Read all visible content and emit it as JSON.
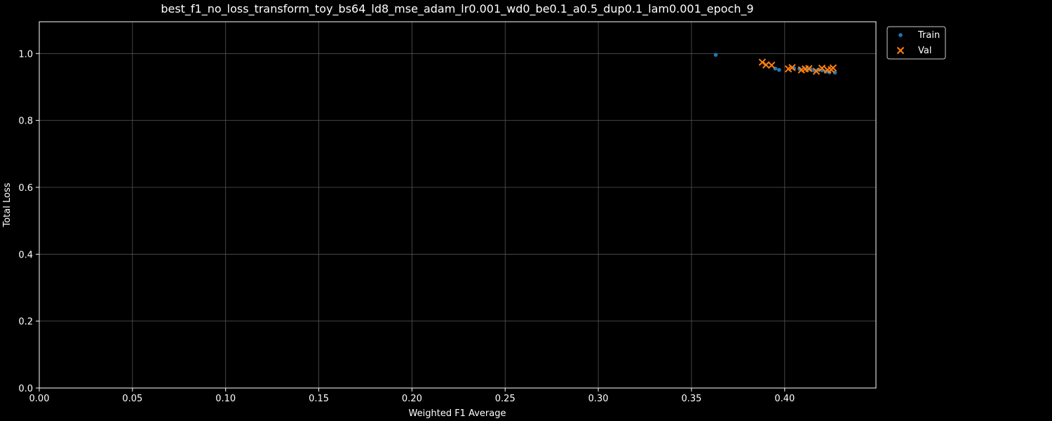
{
  "chart_data": {
    "type": "scatter",
    "title": "best_f1_no_loss_transform_toy_bs64_ld8_mse_adam_lr0.001_wd0_be0.1_a0.5_dup0.1_lam0.001_epoch_9",
    "xlabel": "Weighted F1 Average",
    "ylabel": "Total Loss",
    "xlim": [
      0,
      0.449
    ],
    "ylim": [
      0,
      1.095
    ],
    "xticks": [
      0.0,
      0.05,
      0.1,
      0.15,
      0.2,
      0.25,
      0.3,
      0.35,
      0.4
    ],
    "xtick_labels": [
      "0.00",
      "0.05",
      "0.10",
      "0.15",
      "0.20",
      "0.25",
      "0.30",
      "0.35",
      "0.40"
    ],
    "yticks": [
      0.0,
      0.2,
      0.4,
      0.6,
      0.8,
      1.0
    ],
    "ytick_labels": [
      "0.0",
      "0.2",
      "0.4",
      "0.6",
      "0.8",
      "1.0"
    ],
    "grid": true,
    "legend_position": "outside-top-right",
    "series": [
      {
        "name": "Train",
        "marker": "dot",
        "color": "#1f77b4",
        "points": [
          [
            0.363,
            0.996
          ],
          [
            0.395,
            0.955
          ],
          [
            0.397,
            0.951
          ],
          [
            0.405,
            0.956
          ],
          [
            0.408,
            0.954
          ],
          [
            0.412,
            0.951
          ],
          [
            0.414,
            0.953
          ],
          [
            0.416,
            0.949
          ],
          [
            0.418,
            0.952
          ],
          [
            0.42,
            0.95
          ],
          [
            0.422,
            0.946
          ],
          [
            0.424,
            0.944
          ],
          [
            0.427,
            0.943
          ]
        ]
      },
      {
        "name": "Val",
        "marker": "x",
        "color": "#ff7f0e",
        "points": [
          [
            0.388,
            0.974
          ],
          [
            0.39,
            0.966
          ],
          [
            0.393,
            0.965
          ],
          [
            0.402,
            0.954
          ],
          [
            0.404,
            0.958
          ],
          [
            0.409,
            0.951
          ],
          [
            0.411,
            0.954
          ],
          [
            0.413,
            0.955
          ],
          [
            0.417,
            0.947
          ],
          [
            0.42,
            0.956
          ],
          [
            0.423,
            0.951
          ],
          [
            0.425,
            0.952
          ],
          [
            0.426,
            0.957
          ]
        ]
      }
    ]
  },
  "colors": {
    "background": "#000000",
    "foreground": "#ffffff",
    "grid": "#555555"
  }
}
